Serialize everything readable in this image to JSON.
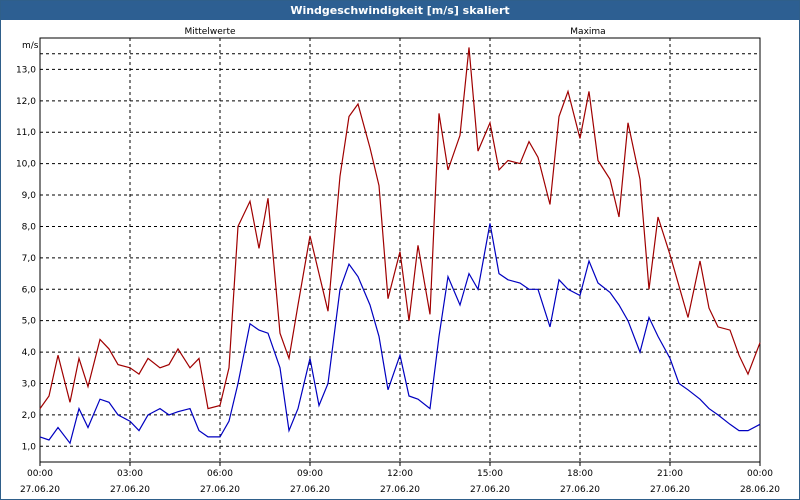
{
  "window": {
    "title": "Windgeschwindigkeit [m/s] skaliert"
  },
  "chart_data": {
    "type": "line",
    "title": "Windgeschwindigkeit [m/s] skaliert",
    "ylabel": "m/s",
    "ylim": [
      0.5,
      14.0
    ],
    "yticks": [
      "1,0",
      "2,0",
      "3,0",
      "4,0",
      "5,0",
      "6,0",
      "7,0",
      "8,0",
      "9,0",
      "10,0",
      "11,0",
      "12,0",
      "13,0"
    ],
    "xlim": [
      0,
      24
    ],
    "xticks": [
      {
        "time": "00:00",
        "date": "27.06.20"
      },
      {
        "time": "03:00",
        "date": "27.06.20"
      },
      {
        "time": "06:00",
        "date": "27.06.20"
      },
      {
        "time": "09:00",
        "date": "27.06.20"
      },
      {
        "time": "12:00",
        "date": "27.06.20"
      },
      {
        "time": "15:00",
        "date": "27.06.20"
      },
      {
        "time": "18:00",
        "date": "27.06.20"
      },
      {
        "time": "21:00",
        "date": "27.06.20"
      },
      {
        "time": "00:00",
        "date": "28.06.20"
      }
    ],
    "grid": true,
    "series": [
      {
        "name": "Mittelwerte",
        "color": "#0000c0",
        "x": [
          0,
          0.3,
          0.6,
          1,
          1.3,
          1.6,
          2,
          2.3,
          2.6,
          3,
          3.3,
          3.6,
          4,
          4.3,
          4.6,
          5,
          5.3,
          5.6,
          6,
          6.3,
          6.6,
          7,
          7.3,
          7.6,
          8,
          8.3,
          8.6,
          9,
          9.3,
          9.6,
          10,
          10.3,
          10.6,
          11,
          11.3,
          11.6,
          12,
          12.3,
          12.6,
          13,
          13.3,
          13.6,
          14,
          14.3,
          14.6,
          15,
          15.3,
          15.6,
          16,
          16.3,
          16.6,
          17,
          17.3,
          17.6,
          18,
          18.3,
          18.6,
          19,
          19.3,
          19.6,
          20,
          20.3,
          20.6,
          21,
          21.3,
          21.6,
          22,
          22.3,
          22.6,
          23,
          23.3,
          23.6,
          24
        ],
        "values": [
          1.3,
          1.2,
          1.6,
          1.1,
          2.2,
          1.6,
          2.5,
          2.4,
          2.0,
          1.8,
          1.5,
          2.0,
          2.2,
          2.0,
          2.1,
          2.2,
          1.5,
          1.3,
          1.3,
          1.8,
          3.0,
          4.9,
          4.7,
          4.6,
          3.5,
          1.5,
          2.2,
          3.8,
          2.3,
          3.0,
          6.0,
          6.8,
          6.4,
          5.5,
          4.5,
          2.8,
          3.9,
          2.6,
          2.5,
          2.2,
          4.5,
          6.4,
          5.5,
          6.5,
          6.0,
          8.1,
          6.5,
          6.3,
          6.2,
          6.0,
          6.0,
          4.8,
          6.3,
          6.0,
          5.8,
          6.9,
          6.2,
          5.9,
          5.5,
          5.0,
          4.0,
          5.1,
          4.5,
          3.8,
          3.0,
          2.8,
          2.5,
          2.2,
          2.0,
          1.7,
          1.5,
          1.5,
          1.7
        ]
      },
      {
        "name": "Maxima",
        "color": "#a00000",
        "x": [
          0,
          0.3,
          0.6,
          1,
          1.3,
          1.6,
          2,
          2.3,
          2.6,
          3,
          3.3,
          3.6,
          4,
          4.3,
          4.6,
          5,
          5.3,
          5.6,
          6,
          6.3,
          6.6,
          7,
          7.3,
          7.6,
          8,
          8.3,
          8.6,
          9,
          9.3,
          9.6,
          10,
          10.3,
          10.6,
          11,
          11.3,
          11.6,
          12,
          12.3,
          12.6,
          13,
          13.3,
          13.6,
          14,
          14.3,
          14.6,
          15,
          15.3,
          15.6,
          16,
          16.3,
          16.6,
          17,
          17.3,
          17.6,
          18,
          18.3,
          18.6,
          19,
          19.3,
          19.6,
          20,
          20.3,
          20.6,
          21,
          21.3,
          21.6,
          22,
          22.3,
          22.6,
          23,
          23.3,
          23.6,
          24
        ],
        "values": [
          2.2,
          2.6,
          3.9,
          2.4,
          3.8,
          2.9,
          4.4,
          4.1,
          3.6,
          3.5,
          3.3,
          3.8,
          3.5,
          3.6,
          4.1,
          3.5,
          3.8,
          2.2,
          2.3,
          3.5,
          8.0,
          8.8,
          7.3,
          8.9,
          4.6,
          3.8,
          5.5,
          7.7,
          6.5,
          5.3,
          9.6,
          11.5,
          11.9,
          10.5,
          9.3,
          5.7,
          7.2,
          5.0,
          7.4,
          5.2,
          11.6,
          9.8,
          10.9,
          13.7,
          10.4,
          11.3,
          9.8,
          10.1,
          10.0,
          10.7,
          10.2,
          8.7,
          11.5,
          12.3,
          10.8,
          12.3,
          10.1,
          9.5,
          8.3,
          11.3,
          9.5,
          6.0,
          8.3,
          7.1,
          6.1,
          5.1,
          6.9,
          5.4,
          4.8,
          4.7,
          3.9,
          3.3,
          4.3
        ]
      }
    ]
  }
}
